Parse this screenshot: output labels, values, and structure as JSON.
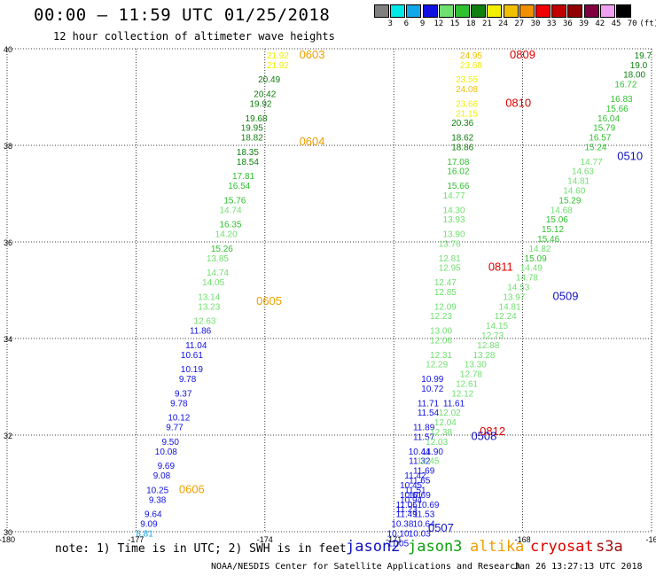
{
  "title": "00:00 – 11:59 UTC 01/25/2018",
  "subtitle": "12 hour collection of altimeter wave heights",
  "note": "note: 1) Time is in UTC; 2) SWH is in feet",
  "credit": "NOAA/NESDIS Center for Satellite Applications and Research",
  "timestamp": "Jan 26 13:27:13 UTC 2018",
  "legend": [
    {
      "name": "jason2",
      "color": "#1010c0"
    },
    {
      "name": "jason3",
      "color": "#10a010"
    },
    {
      "name": "altika",
      "color": "#f0a000"
    },
    {
      "name": "cryosat",
      "color": "#e00000"
    },
    {
      "name": "s3a",
      "color": "#a01010"
    }
  ],
  "color_scale": {
    "unit": "(ft)",
    "labels": [
      "3",
      "6",
      "9",
      "12",
      "15",
      "18",
      "21",
      "24",
      "27",
      "30",
      "33",
      "36",
      "39",
      "42",
      "45",
      "70"
    ],
    "colors": [
      "#808080",
      "#00e8e8",
      "#10a8e8",
      "#1010e0",
      "#70e070",
      "#30c030",
      "#108010",
      "#f0f000",
      "#f0c000",
      "#f09000",
      "#f00000",
      "#c00000",
      "#900000",
      "#800040",
      "#f0a0f0",
      "#000000"
    ]
  },
  "chart_data": {
    "type": "scatter",
    "title": "00:00 – 11:59 UTC 01/25/2018",
    "xlabel": "",
    "ylabel": "",
    "xlim": [
      -180,
      -165
    ],
    "ylim": [
      30,
      40
    ],
    "xticks": [
      "-180",
      "-177",
      "-174",
      "-171",
      "-168",
      "-16"
    ],
    "yticks": [
      "30",
      "32",
      "34",
      "36",
      "38",
      "40"
    ],
    "grid": true,
    "time_labels": [
      {
        "text": "0603",
        "lon": -173.2,
        "lat": 39.8,
        "color": "#f0a000"
      },
      {
        "text": "0604",
        "lon": -173.2,
        "lat": 38.0,
        "color": "#f0a000"
      },
      {
        "text": "0605",
        "lon": -174.2,
        "lat": 34.7,
        "color": "#f0a000"
      },
      {
        "text": "0606",
        "lon": -176.0,
        "lat": 30.8,
        "color": "#f0a000"
      },
      {
        "text": "0809",
        "lon": -168.3,
        "lat": 39.8,
        "color": "#e00000"
      },
      {
        "text": "0810",
        "lon": -168.4,
        "lat": 38.8,
        "color": "#e00000"
      },
      {
        "text": "0811",
        "lon": -168.8,
        "lat": 35.4,
        "color": "#e00000"
      },
      {
        "text": "0812",
        "lon": -169.0,
        "lat": 32.0,
        "color": "#e00000"
      },
      {
        "text": "0508",
        "lon": -169.2,
        "lat": 31.9,
        "color": "#1010c0"
      },
      {
        "text": "0507",
        "lon": -170.2,
        "lat": 30.0,
        "color": "#1010c0"
      },
      {
        "text": "0509",
        "lon": -167.3,
        "lat": 34.8,
        "color": "#1010c0"
      },
      {
        "text": "0510",
        "lon": -165.8,
        "lat": 37.7,
        "color": "#1010c0"
      }
    ],
    "series": [
      {
        "name": "altika",
        "points": [
          {
            "lon": -173.7,
            "lat": 39.8,
            "swh": 21.92
          },
          {
            "lon": -173.7,
            "lat": 39.6,
            "swh": 21.92
          },
          {
            "lon": -173.9,
            "lat": 39.3,
            "swh": 20.49
          },
          {
            "lon": -174.0,
            "lat": 39.0,
            "swh": 20.42
          },
          {
            "lon": -174.1,
            "lat": 38.8,
            "swh": 19.92
          },
          {
            "lon": -174.2,
            "lat": 38.5,
            "swh": 19.68
          },
          {
            "lon": -174.3,
            "lat": 38.3,
            "swh": 19.95
          },
          {
            "lon": -174.3,
            "lat": 38.1,
            "swh": 18.82
          },
          {
            "lon": -174.4,
            "lat": 37.8,
            "swh": 18.35
          },
          {
            "lon": -174.4,
            "lat": 37.6,
            "swh": 18.54
          },
          {
            "lon": -174.5,
            "lat": 37.3,
            "swh": 17.81
          },
          {
            "lon": -174.6,
            "lat": 37.1,
            "swh": 16.54
          },
          {
            "lon": -174.7,
            "lat": 36.8,
            "swh": 15.76
          },
          {
            "lon": -174.8,
            "lat": 36.6,
            "swh": 14.74
          },
          {
            "lon": -174.8,
            "lat": 36.3,
            "swh": 16.35
          },
          {
            "lon": -174.9,
            "lat": 36.1,
            "swh": 14.2
          },
          {
            "lon": -175.0,
            "lat": 35.8,
            "swh": 15.26
          },
          {
            "lon": -175.1,
            "lat": 35.6,
            "swh": 13.85
          },
          {
            "lon": -175.1,
            "lat": 35.3,
            "swh": 14.74
          },
          {
            "lon": -175.2,
            "lat": 35.1,
            "swh": 14.05
          },
          {
            "lon": -175.3,
            "lat": 34.8,
            "swh": 13.14
          },
          {
            "lon": -175.3,
            "lat": 34.6,
            "swh": 13.23
          },
          {
            "lon": -175.4,
            "lat": 34.3,
            "swh": 12.63
          },
          {
            "lon": -175.5,
            "lat": 34.1,
            "swh": 11.86
          },
          {
            "lon": -175.6,
            "lat": 33.8,
            "swh": 11.04
          },
          {
            "lon": -175.7,
            "lat": 33.6,
            "swh": 10.61
          },
          {
            "lon": -175.7,
            "lat": 33.3,
            "swh": 10.19
          },
          {
            "lon": -175.8,
            "lat": 33.1,
            "swh": 9.78
          },
          {
            "lon": -175.9,
            "lat": 32.8,
            "swh": 9.37
          },
          {
            "lon": -176.0,
            "lat": 32.6,
            "swh": 9.78
          },
          {
            "lon": -176.0,
            "lat": 32.3,
            "swh": 10.12
          },
          {
            "lon": -176.1,
            "lat": 32.1,
            "swh": 9.77
          },
          {
            "lon": -176.2,
            "lat": 31.8,
            "swh": 9.5
          },
          {
            "lon": -176.3,
            "lat": 31.6,
            "swh": 10.08
          },
          {
            "lon": -176.3,
            "lat": 31.3,
            "swh": 9.69
          },
          {
            "lon": -176.4,
            "lat": 31.1,
            "swh": 9.08
          },
          {
            "lon": -176.5,
            "lat": 30.8,
            "swh": 10.25
          },
          {
            "lon": -176.5,
            "lat": 30.6,
            "swh": 9.38
          },
          {
            "lon": -176.6,
            "lat": 30.3,
            "swh": 9.64
          },
          {
            "lon": -176.7,
            "lat": 30.1,
            "swh": 9.09
          },
          {
            "lon": -176.8,
            "lat": 29.9,
            "swh": 8.81
          }
        ]
      },
      {
        "name": "cryosat",
        "points": [
          {
            "lon": -169.2,
            "lat": 39.8,
            "swh": 24.95
          },
          {
            "lon": -169.2,
            "lat": 39.6,
            "swh": 23.69
          },
          {
            "lon": -169.3,
            "lat": 39.3,
            "swh": 23.55
          },
          {
            "lon": -169.3,
            "lat": 39.1,
            "swh": 24.08
          },
          {
            "lon": -169.3,
            "lat": 38.8,
            "swh": 23.66
          },
          {
            "lon": -169.3,
            "lat": 38.6,
            "swh": 21.15
          },
          {
            "lon": -169.4,
            "lat": 38.4,
            "swh": 20.36
          },
          {
            "lon": -169.4,
            "lat": 38.1,
            "swh": 18.62
          },
          {
            "lon": -169.4,
            "lat": 37.9,
            "swh": 18.86
          },
          {
            "lon": -169.5,
            "lat": 37.6,
            "swh": 17.08
          },
          {
            "lon": -169.5,
            "lat": 37.4,
            "swh": 16.02
          },
          {
            "lon": -169.5,
            "lat": 37.1,
            "swh": 15.66
          },
          {
            "lon": -169.6,
            "lat": 36.9,
            "swh": 14.77
          },
          {
            "lon": -169.6,
            "lat": 36.6,
            "swh": 14.3
          },
          {
            "lon": -169.6,
            "lat": 36.4,
            "swh": 13.93
          },
          {
            "lon": -169.6,
            "lat": 36.1,
            "swh": 13.9
          },
          {
            "lon": -169.7,
            "lat": 35.9,
            "swh": 13.76
          },
          {
            "lon": -169.7,
            "lat": 35.6,
            "swh": 12.81
          },
          {
            "lon": -169.7,
            "lat": 35.4,
            "swh": 12.95
          },
          {
            "lon": -169.8,
            "lat": 35.1,
            "swh": 12.47
          },
          {
            "lon": -169.8,
            "lat": 34.9,
            "swh": 12.85
          },
          {
            "lon": -169.8,
            "lat": 34.6,
            "swh": 12.09
          },
          {
            "lon": -169.9,
            "lat": 34.4,
            "swh": 12.23
          },
          {
            "lon": -169.9,
            "lat": 34.1,
            "swh": 13.0
          },
          {
            "lon": -169.9,
            "lat": 33.9,
            "swh": 12.06
          },
          {
            "lon": -169.9,
            "lat": 33.6,
            "swh": 12.31
          },
          {
            "lon": -170.0,
            "lat": 33.4,
            "swh": 12.29
          }
        ]
      },
      {
        "name": "jason2",
        "points": [
          {
            "lon": -170.1,
            "lat": 33.1,
            "swh": 10.99
          },
          {
            "lon": -170.1,
            "lat": 32.9,
            "swh": 10.72
          },
          {
            "lon": -170.2,
            "lat": 32.6,
            "swh": 11.71
          },
          {
            "lon": -170.2,
            "lat": 32.4,
            "swh": 11.54
          },
          {
            "lon": -170.3,
            "lat": 32.1,
            "swh": 11.89
          },
          {
            "lon": -170.3,
            "lat": 31.9,
            "swh": 11.57
          },
          {
            "lon": -170.4,
            "lat": 31.6,
            "swh": 10.44
          },
          {
            "lon": -170.4,
            "lat": 31.4,
            "swh": 11.32
          },
          {
            "lon": -170.5,
            "lat": 31.1,
            "swh": 11.42
          },
          {
            "lon": -170.6,
            "lat": 30.9,
            "swh": 10.45
          },
          {
            "lon": -170.6,
            "lat": 30.7,
            "swh": 10.61
          },
          {
            "lon": -170.7,
            "lat": 30.5,
            "swh": 11.06
          },
          {
            "lon": -170.7,
            "lat": 30.3,
            "swh": 11.49
          },
          {
            "lon": -170.8,
            "lat": 30.1,
            "swh": 10.38
          },
          {
            "lon": -170.9,
            "lat": 29.9,
            "swh": 10.1
          },
          {
            "lon": -170.9,
            "lat": 29.7,
            "swh": 11.05
          },
          {
            "lon": -170.4,
            "lat": 30.7,
            "swh": 10.69
          },
          {
            "lon": -170.2,
            "lat": 30.5,
            "swh": 10.69
          },
          {
            "lon": -170.3,
            "lat": 30.3,
            "swh": 11.53
          },
          {
            "lon": -170.3,
            "lat": 30.1,
            "swh": 10.64
          },
          {
            "lon": -170.4,
            "lat": 29.9,
            "swh": 10.03
          }
        ]
      },
      {
        "name": "s3a",
        "points": [
          {
            "lon": -165.2,
            "lat": 39.8,
            "swh": 19.7
          },
          {
            "lon": -165.3,
            "lat": 39.6,
            "swh": 19.0
          },
          {
            "lon": -165.4,
            "lat": 39.4,
            "swh": 18.0
          },
          {
            "lon": -165.6,
            "lat": 39.2,
            "swh": 16.72
          },
          {
            "lon": -165.7,
            "lat": 38.9,
            "swh": 16.83
          },
          {
            "lon": -165.8,
            "lat": 38.7,
            "swh": 15.66
          },
          {
            "lon": -166.0,
            "lat": 38.5,
            "swh": 16.04
          },
          {
            "lon": -166.1,
            "lat": 38.3,
            "swh": 15.79
          },
          {
            "lon": -166.2,
            "lat": 38.1,
            "swh": 16.57
          },
          {
            "lon": -166.3,
            "lat": 37.9,
            "swh": 15.24
          },
          {
            "lon": -166.4,
            "lat": 37.6,
            "swh": 14.77
          },
          {
            "lon": -166.6,
            "lat": 37.4,
            "swh": 14.63
          },
          {
            "lon": -166.7,
            "lat": 37.2,
            "swh": 14.81
          },
          {
            "lon": -166.8,
            "lat": 37.0,
            "swh": 14.6
          },
          {
            "lon": -166.9,
            "lat": 36.8,
            "swh": 15.29
          },
          {
            "lon": -167.1,
            "lat": 36.6,
            "swh": 14.68
          },
          {
            "lon": -167.2,
            "lat": 36.4,
            "swh": 15.06
          },
          {
            "lon": -167.3,
            "lat": 36.2,
            "swh": 15.12
          },
          {
            "lon": -167.4,
            "lat": 36.0,
            "swh": 15.46
          },
          {
            "lon": -167.6,
            "lat": 35.8,
            "swh": 14.82
          },
          {
            "lon": -167.7,
            "lat": 35.6,
            "swh": 15.09
          },
          {
            "lon": -167.8,
            "lat": 35.4,
            "swh": 14.49
          },
          {
            "lon": -167.9,
            "lat": 35.2,
            "swh": 14.78
          },
          {
            "lon": -168.1,
            "lat": 35.0,
            "swh": 14.53
          },
          {
            "lon": -168.2,
            "lat": 34.8,
            "swh": 13.97
          },
          {
            "lon": -168.3,
            "lat": 34.6,
            "swh": 14.81
          },
          {
            "lon": -168.4,
            "lat": 34.4,
            "swh": 12.24
          },
          {
            "lon": -168.6,
            "lat": 34.2,
            "swh": 14.15
          },
          {
            "lon": -168.7,
            "lat": 34.0,
            "swh": 12.73
          },
          {
            "lon": -168.8,
            "lat": 33.8,
            "swh": 12.88
          },
          {
            "lon": -168.9,
            "lat": 33.6,
            "swh": 13.28
          },
          {
            "lon": -169.1,
            "lat": 33.4,
            "swh": 13.3
          },
          {
            "lon": -169.2,
            "lat": 33.2,
            "swh": 12.78
          },
          {
            "lon": -169.3,
            "lat": 33.0,
            "swh": 12.61
          },
          {
            "lon": -169.4,
            "lat": 32.8,
            "swh": 12.12
          },
          {
            "lon": -169.6,
            "lat": 32.6,
            "swh": 11.61
          },
          {
            "lon": -169.7,
            "lat": 32.4,
            "swh": 12.02
          },
          {
            "lon": -169.8,
            "lat": 32.2,
            "swh": 12.04
          },
          {
            "lon": -169.9,
            "lat": 32.0,
            "swh": 12.38
          },
          {
            "lon": -170.0,
            "lat": 31.8,
            "swh": 12.03
          },
          {
            "lon": -170.1,
            "lat": 31.6,
            "swh": 11.9
          },
          {
            "lon": -170.2,
            "lat": 31.4,
            "swh": 12.45
          },
          {
            "lon": -170.3,
            "lat": 31.2,
            "swh": 11.69
          },
          {
            "lon": -170.4,
            "lat": 31.0,
            "swh": 11.65
          },
          {
            "lon": -170.5,
            "lat": 30.8,
            "swh": 11.51
          },
          {
            "lon": -170.6,
            "lat": 30.6,
            "swh": 10.94
          },
          {
            "lon": -170.7,
            "lat": 30.4,
            "swh": 11.23
          }
        ]
      }
    ]
  }
}
